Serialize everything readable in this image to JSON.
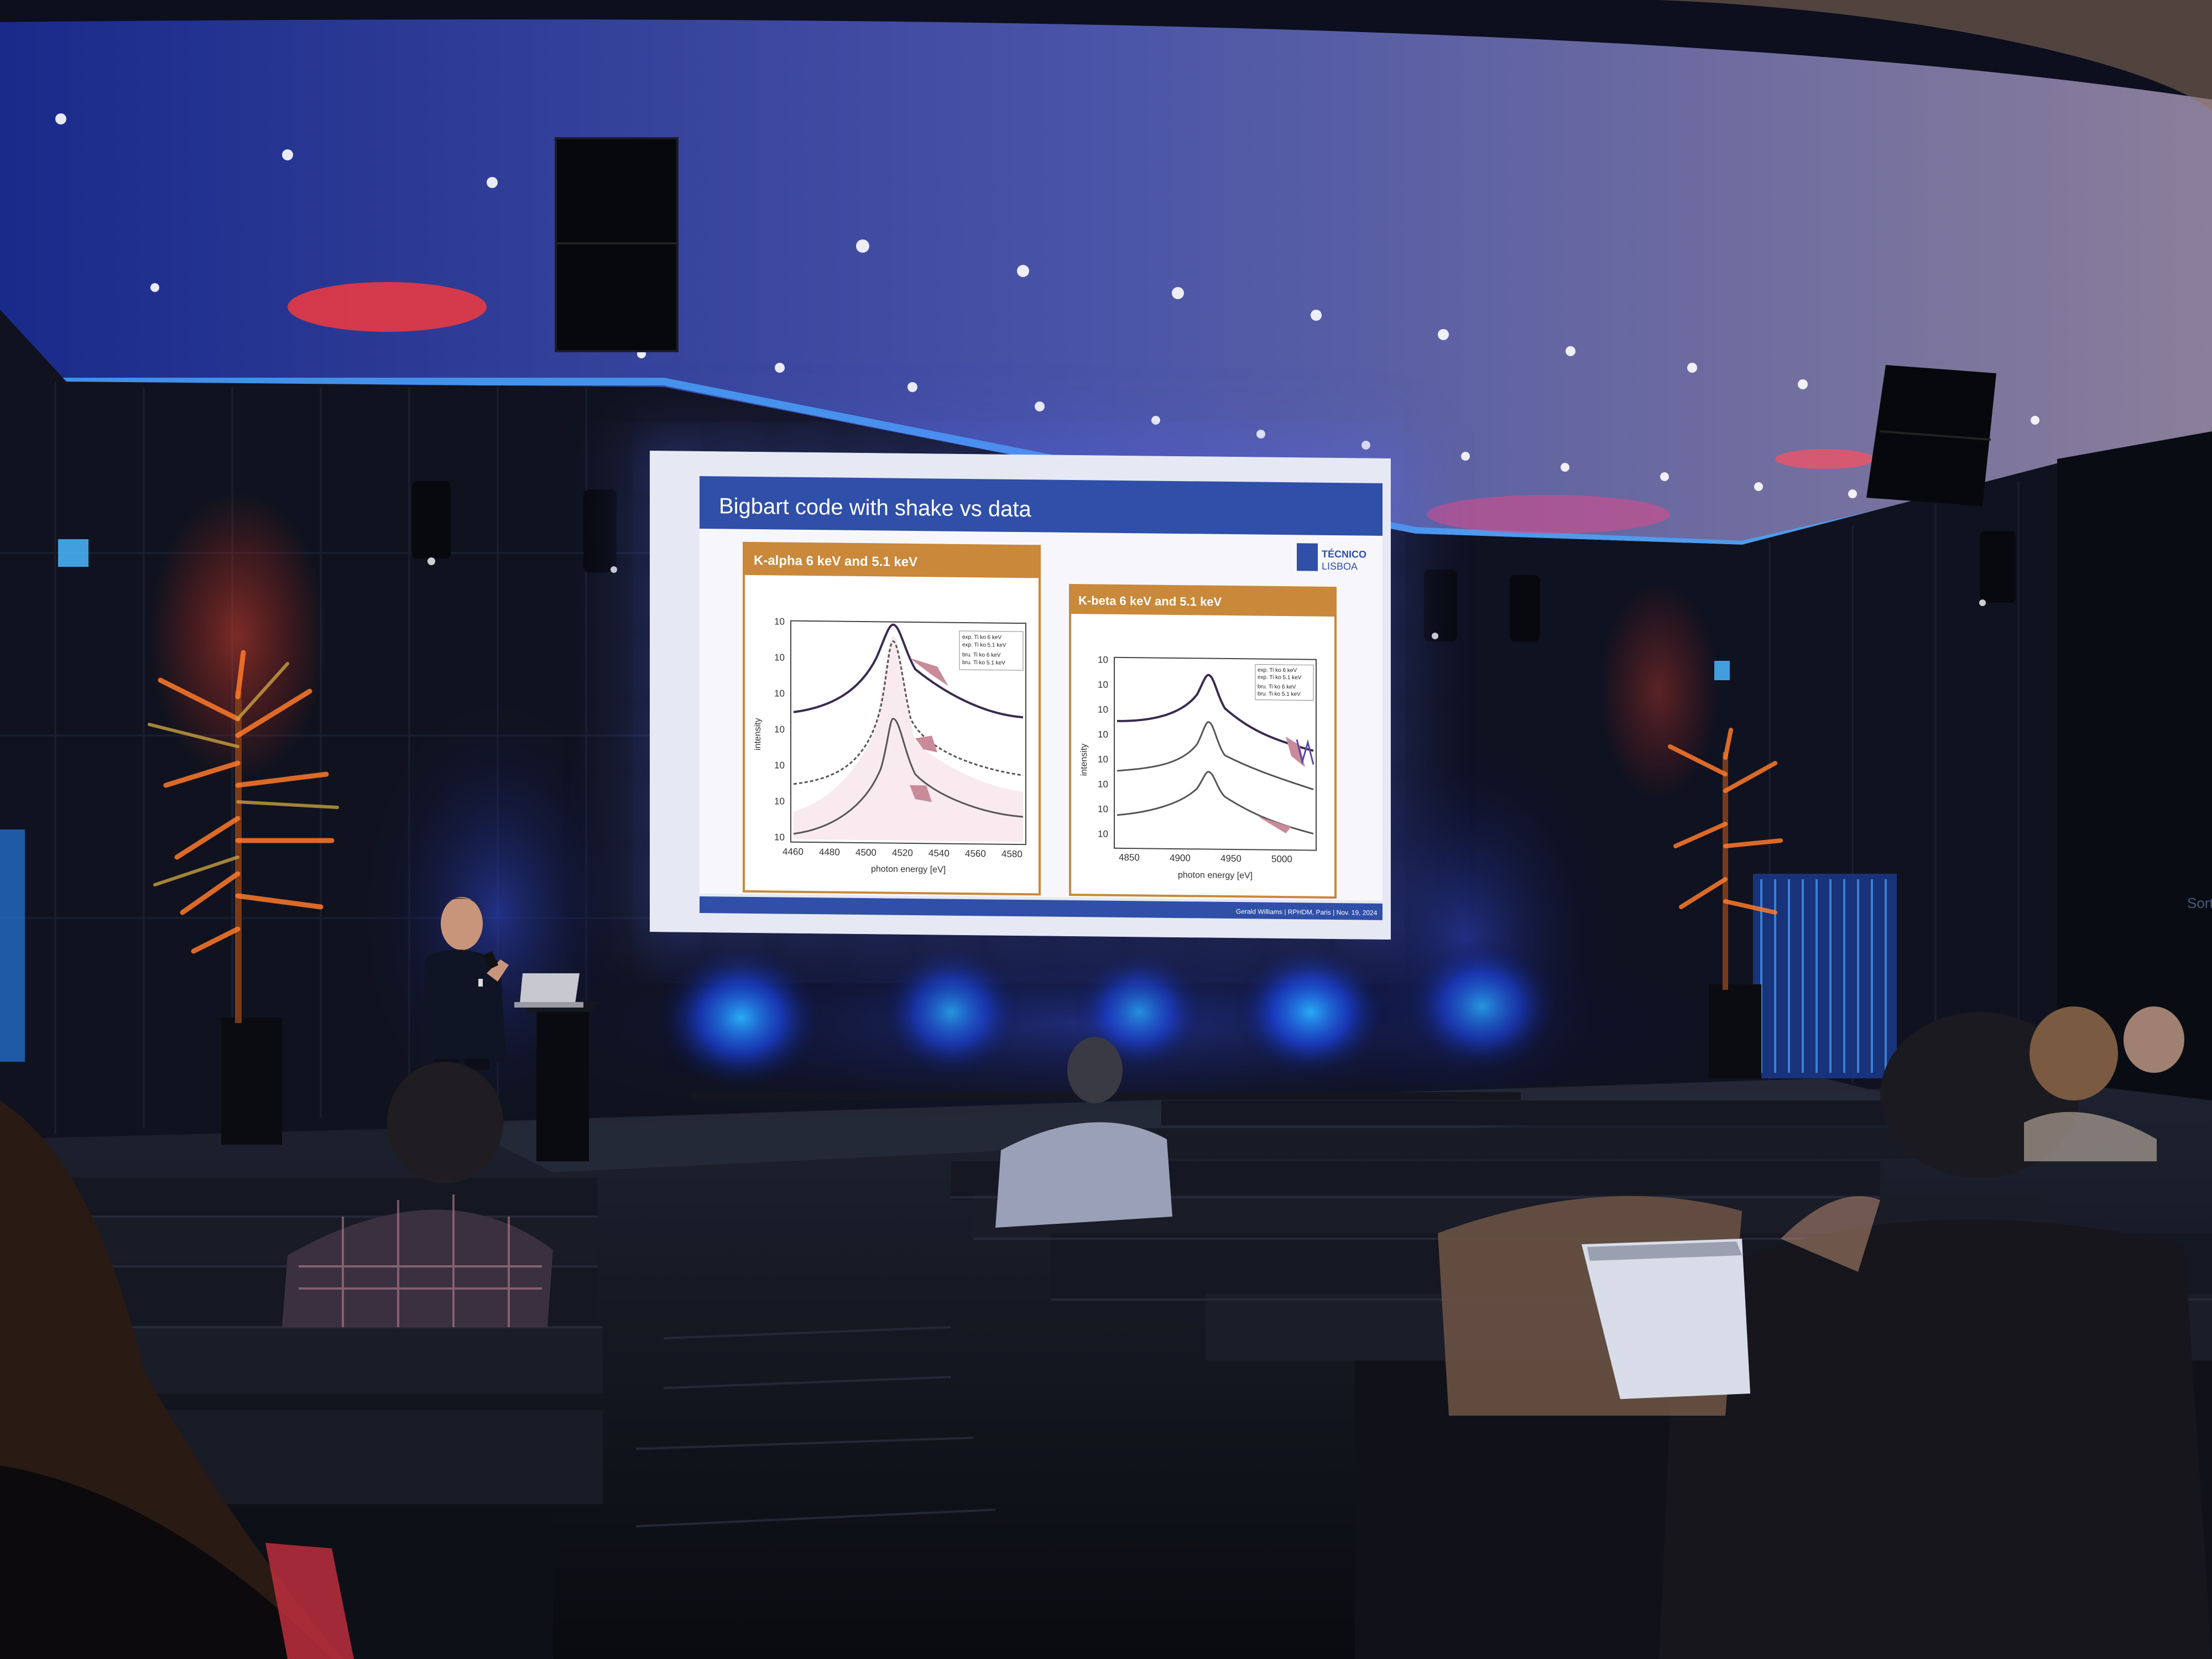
{
  "slide": {
    "title": "Bigbart code with shake vs data",
    "logo_line1": "TÉCNICO",
    "logo_line2": "LISBOA",
    "footer": "Gerald Williams | RPHDM, Paris | Nov. 19, 2024",
    "left_panel": {
      "header": "K-alpha 6 keV and 5.1 keV",
      "ylabel": "intensity",
      "xlabel": "photon energy [eV]",
      "xticks": [
        "4460",
        "4480",
        "4500",
        "4520",
        "4540",
        "4560",
        "4580"
      ],
      "yticks": [
        "10",
        "10",
        "10",
        "10",
        "10",
        "10",
        "10"
      ],
      "legend": [
        "exp. Ti ko 6 keV",
        "exp. Ti ko 5.1 keV",
        "bru. Ti ko 6 keV",
        "bru. Ti ko 5.1 keV"
      ]
    },
    "right_panel": {
      "header": "K-beta 6 keV and 5.1 keV",
      "ylabel": "intensity",
      "xlabel": "photon energy [eV]",
      "xticks": [
        "4850",
        "4900",
        "4950",
        "5000"
      ],
      "yticks": [
        "10",
        "10",
        "10",
        "10",
        "10",
        "10",
        "10",
        "10"
      ],
      "legend": [
        "exp. Ti ko 6 keV",
        "exp. Ti ko 5.1 keV",
        "bru. Ti ko 6 keV",
        "bru. Ti ko 5.1 keV"
      ]
    }
  },
  "wall_sign": "Sortie",
  "colors": {
    "stage_wash": "#1a3cff",
    "slide_title_bar": "#2f4fa8",
    "panel_header": "#c9883a",
    "curve_fill": "#c98a9a"
  }
}
